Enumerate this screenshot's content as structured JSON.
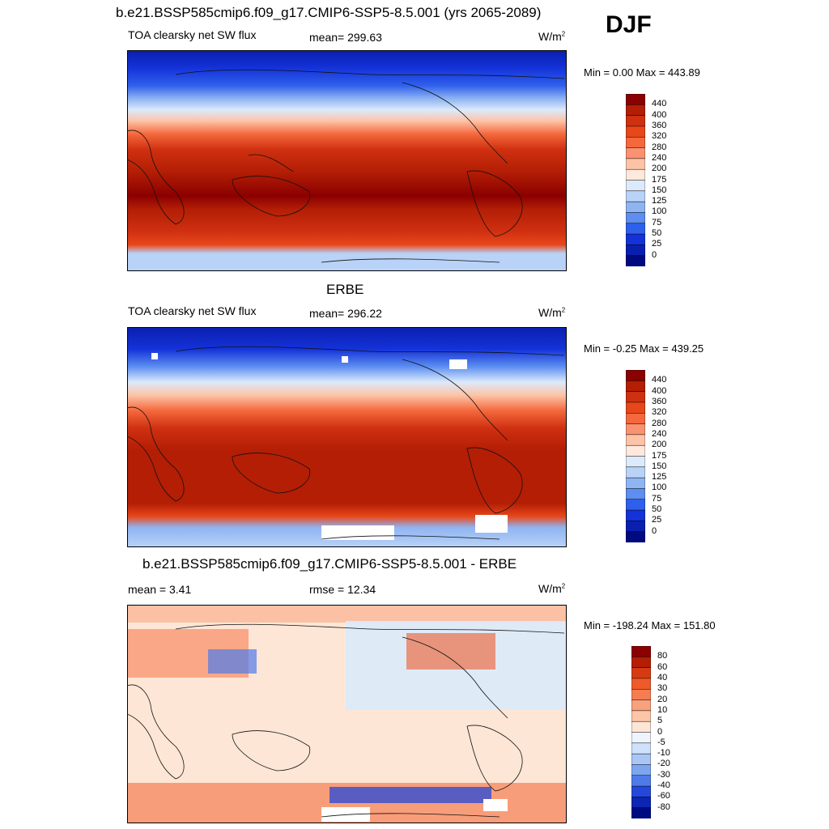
{
  "season": "DJF",
  "panels": [
    {
      "id": "model",
      "title": "b.e21.BSSP585cmip6.f09_g17.CMIP6-SSP5-8.5.001 (yrs 2065-2089)",
      "left_label": "TOA clearsky net SW flux",
      "center_label": "mean= 299.63",
      "units": "W/m",
      "units_sup": "2",
      "minmax": "Min =   0.00 Max = 443.89",
      "colorbar_labels": [
        "440",
        "400",
        "360",
        "320",
        "280",
        "240",
        "200",
        "175",
        "150",
        "125",
        "100",
        "75",
        "50",
        "25",
        "0"
      ],
      "colorbar_colors": [
        "#8b0000",
        "#b31e05",
        "#cf3010",
        "#e8471a",
        "#f4683c",
        "#fa9170",
        "#fdc3a6",
        "#fee9dc",
        "#dceafb",
        "#b9d2f7",
        "#8fb4f2",
        "#5d8ef0",
        "#2f60eb",
        "#1432d9",
        "#0b1fae",
        "#000a80"
      ]
    },
    {
      "id": "obs",
      "title": "ERBE",
      "left_label": "TOA clearsky net SW flux",
      "center_label": "mean= 296.22",
      "units": "W/m",
      "units_sup": "2",
      "minmax": "Min =  -0.25 Max = 439.25",
      "colorbar_labels": [
        "440",
        "400",
        "360",
        "320",
        "280",
        "240",
        "200",
        "175",
        "150",
        "125",
        "100",
        "75",
        "50",
        "25",
        "0"
      ],
      "colorbar_colors": [
        "#8b0000",
        "#b31e05",
        "#cf3010",
        "#e8471a",
        "#f4683c",
        "#fa9170",
        "#fdc3a6",
        "#fee9dc",
        "#dceafb",
        "#b9d2f7",
        "#8fb4f2",
        "#5d8ef0",
        "#2f60eb",
        "#1432d9",
        "#0b1fae",
        "#000a80"
      ]
    },
    {
      "id": "diff",
      "title": "b.e21.BSSP585cmip6.f09_g17.CMIP6-SSP5-8.5.001 - ERBE",
      "left_label": "mean =   3.41",
      "center_label": "rmse =  12.34",
      "units": "W/m",
      "units_sup": "2",
      "minmax": "Min = -198.24 Max = 151.80",
      "colorbar_labels": [
        "80",
        "60",
        "40",
        "30",
        "20",
        "10",
        "5",
        "0",
        "-5",
        "-10",
        "-20",
        "-30",
        "-40",
        "-60",
        "-80"
      ],
      "colorbar_colors": [
        "#8b0000",
        "#b31e05",
        "#d63a12",
        "#ee5a2a",
        "#f57d52",
        "#f9a07c",
        "#fcc5a8",
        "#fee6d6",
        "#eef4fd",
        "#cfe0fa",
        "#aac6f5",
        "#7ea6f0",
        "#4f7be9",
        "#2448da",
        "#0c25b3",
        "#000a80"
      ]
    }
  ]
}
